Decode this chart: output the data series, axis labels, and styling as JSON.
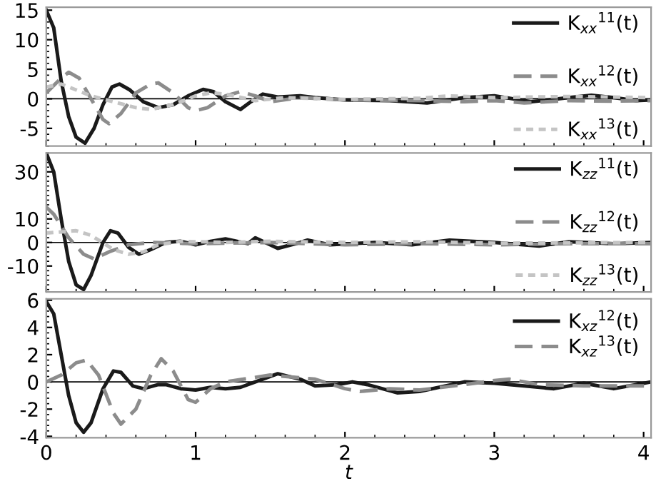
{
  "chart_data": [
    {
      "type": "line",
      "xlim": [
        0,
        4.05
      ],
      "xticks": [
        0,
        1,
        2,
        3,
        4
      ],
      "ylim": [
        -8,
        15.5
      ],
      "yticks": [
        -5,
        0,
        5,
        10,
        15
      ],
      "tick_labels": "y",
      "legend": "right",
      "grid": false,
      "ref_lines": [
        {
          "axis": "y",
          "value": 0,
          "color": "#000000"
        }
      ],
      "series": [
        {
          "name": "K$_{xx}$$^{11}$(t)",
          "color": "#1a1a1a",
          "line_style": "solid",
          "x": [
            0,
            0.05,
            0.1,
            0.15,
            0.2,
            0.26,
            0.32,
            0.38,
            0.44,
            0.49,
            0.56,
            0.65,
            0.75,
            0.85,
            0.95,
            1.05,
            1.12,
            1.2,
            1.3,
            1.37,
            1.45,
            1.55,
            1.7,
            1.8,
            2.0,
            2.3,
            2.55,
            2.8,
            3.0,
            3.25,
            3.5,
            3.65,
            3.8,
            3.95,
            4.05
          ],
          "values": [
            15,
            12,
            3,
            -3,
            -6.5,
            -7.5,
            -5,
            -1,
            2,
            2.5,
            1.5,
            -0.5,
            -1.5,
            -1,
            0.5,
            1.6,
            1.2,
            -0.5,
            -1.8,
            -0.5,
            0.8,
            0.3,
            0.5,
            0.2,
            -0.2,
            -0.3,
            -0.7,
            0.2,
            0.5,
            -0.5,
            0.2,
            0.6,
            0.2,
            -0.3,
            -0.2
          ]
        },
        {
          "name": "K$_{xx}$$^{12}$(t)",
          "color": "#8c8c8c",
          "line_style": "dashed",
          "x": [
            0,
            0.1,
            0.15,
            0.22,
            0.3,
            0.38,
            0.42,
            0.5,
            0.6,
            0.7,
            0.75,
            0.85,
            0.95,
            1.0,
            1.08,
            1.2,
            1.3,
            1.4,
            1.5,
            1.7,
            2.0,
            2.5,
            2.8,
            3.0,
            3.2,
            3.5,
            3.8,
            4.05
          ],
          "values": [
            1,
            3.5,
            4.5,
            3.5,
            0,
            -3.5,
            -4.2,
            -2.5,
            1,
            2.5,
            2.7,
            1,
            -1.5,
            -2,
            -1.5,
            0.5,
            1.2,
            0.5,
            -0.5,
            0.2,
            -0.2,
            -0.3,
            -0.5,
            -0.3,
            -0.7,
            -0.3,
            -0.4,
            -0.3
          ]
        },
        {
          "name": "K$_{xx}$$^{13}$(t)",
          "color": "#c4c4c4",
          "line_style": "dotted",
          "x": [
            0,
            0.1,
            0.2,
            0.3,
            0.45,
            0.6,
            0.7,
            0.85,
            1.0,
            1.1,
            1.2,
            1.4,
            1.6,
            2.0,
            2.5,
            2.7,
            3.0,
            3.5,
            4.05
          ],
          "values": [
            2,
            2.5,
            1.5,
            0.5,
            -0.5,
            -1.5,
            -1.8,
            -1,
            0.5,
            1,
            0.8,
            -0.3,
            0.2,
            -0.1,
            0.1,
            0.5,
            0.2,
            0.4,
            0.2
          ]
        }
      ]
    },
    {
      "type": "line",
      "xlim": [
        0,
        4.05
      ],
      "xticks": [
        0,
        1,
        2,
        3,
        4
      ],
      "ylim": [
        -21,
        38
      ],
      "yticks": [
        -10,
        0,
        10,
        30
      ],
      "tick_labels": "y",
      "legend": "right",
      "grid": false,
      "ref_lines": [
        {
          "axis": "y",
          "value": 0,
          "color": "#000000"
        }
      ],
      "series": [
        {
          "name": "K$_{zz}$$^{11}$(t)",
          "color": "#1a1a1a",
          "line_style": "solid",
          "x": [
            0,
            0.05,
            0.1,
            0.15,
            0.2,
            0.25,
            0.3,
            0.38,
            0.43,
            0.48,
            0.55,
            0.62,
            0.7,
            0.8,
            0.9,
            1.0,
            1.1,
            1.2,
            1.35,
            1.4,
            1.55,
            1.7,
            1.75,
            1.9,
            2.2,
            2.45,
            2.7,
            3.0,
            3.3,
            3.5,
            3.8,
            4.05
          ],
          "values": [
            38,
            30,
            10,
            -8,
            -18,
            -20,
            -14,
            0,
            5,
            4,
            -2,
            -5,
            -3,
            0,
            0.5,
            -1,
            0.5,
            1.5,
            -0.5,
            2,
            -2.5,
            0,
            1,
            -1,
            0,
            -1,
            1,
            0,
            -1.5,
            0.3,
            -0.5,
            0
          ]
        },
        {
          "name": "K$_{zz}$$^{12}$(t)",
          "color": "#8c8c8c",
          "line_style": "dashed",
          "x": [
            0,
            0.05,
            0.15,
            0.25,
            0.32,
            0.42,
            0.55,
            0.7,
            1.0,
            1.5,
            2.0,
            2.5,
            3.0,
            3.5,
            4.05
          ],
          "values": [
            15,
            12,
            2,
            -5,
            -7,
            -4,
            -1,
            0,
            -0.5,
            0,
            -1,
            -0.5,
            -1,
            -0.5,
            -0.5
          ]
        },
        {
          "name": "K$_{zz}$$^{13}$(t)",
          "color": "#c4c4c4",
          "line_style": "dotted",
          "x": [
            0,
            0.1,
            0.2,
            0.3,
            0.45,
            0.55,
            0.65,
            0.75,
            0.9,
            1.2,
            1.5,
            2.0,
            2.5,
            3.0,
            4.05
          ],
          "values": [
            4,
            4.5,
            5,
            3,
            -3,
            -5,
            -4,
            -1,
            0.5,
            0,
            0.5,
            0,
            0.3,
            -0.3,
            0
          ]
        }
      ]
    },
    {
      "type": "line",
      "xlim": [
        0,
        4.05
      ],
      "xticks": [
        0,
        1,
        2,
        3,
        4
      ],
      "ylim": [
        -4.1,
        6.1
      ],
      "yticks": [
        -4,
        -2,
        0,
        2,
        4,
        6
      ],
      "xlabel": "t",
      "legend": "top right",
      "grid": false,
      "ref_lines": [
        {
          "axis": "y",
          "value": 0,
          "color": "#000000"
        }
      ],
      "series": [
        {
          "name": "K$_{xz}$$^{12}$(t)",
          "color": "#1a1a1a",
          "line_style": "solid",
          "x": [
            0,
            0.05,
            0.1,
            0.15,
            0.2,
            0.25,
            0.3,
            0.38,
            0.45,
            0.5,
            0.58,
            0.65,
            0.75,
            0.8,
            0.9,
            1.0,
            1.1,
            1.2,
            1.3,
            1.4,
            1.55,
            1.7,
            1.8,
            1.95,
            2.05,
            2.15,
            2.35,
            2.5,
            2.8,
            3.0,
            3.2,
            3.4,
            3.6,
            3.8,
            4.05
          ],
          "values": [
            5.9,
            5,
            2,
            -1,
            -3,
            -3.7,
            -3,
            -0.5,
            0.8,
            0.7,
            -0.3,
            -0.5,
            -0.2,
            -0.2,
            -0.5,
            -0.6,
            -0.4,
            -0.5,
            -0.4,
            0,
            0.6,
            0.2,
            -0.3,
            -0.2,
            0,
            -0.2,
            -0.8,
            -0.7,
            0,
            -0.1,
            -0.3,
            -0.5,
            -0.1,
            -0.5,
            0
          ]
        },
        {
          "name": "K$_{xz}$$^{13}$(t)",
          "color": "#8c8c8c",
          "line_style": "dashed",
          "x": [
            0,
            0.1,
            0.2,
            0.27,
            0.35,
            0.45,
            0.5,
            0.6,
            0.7,
            0.77,
            0.85,
            0.95,
            1.0,
            1.1,
            1.2,
            1.5,
            1.8,
            2.0,
            2.1,
            2.3,
            2.5,
            2.8,
            3.0,
            3.1,
            3.3,
            3.6,
            4.05
          ],
          "values": [
            0,
            0.5,
            1.4,
            1.6,
            0.5,
            -2.3,
            -3.1,
            -2,
            0.5,
            1.7,
            0.8,
            -1.3,
            -1.5,
            -0.5,
            0,
            0.5,
            0.2,
            -0.5,
            -0.7,
            -0.5,
            -0.6,
            -0.2,
            0.1,
            0.2,
            -0.2,
            -0.3,
            -0.3
          ]
        }
      ]
    }
  ]
}
